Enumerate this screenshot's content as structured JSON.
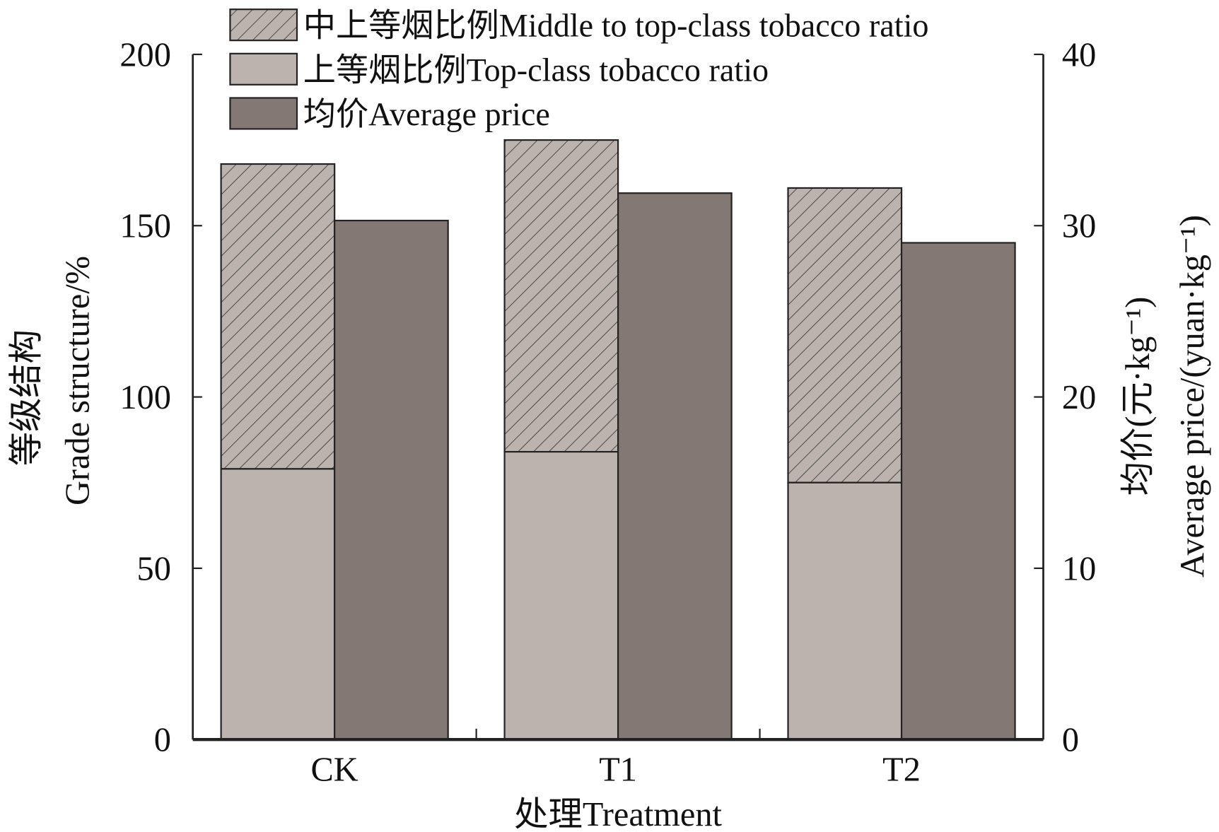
{
  "chart_data": {
    "type": "bar",
    "categories": [
      "CK",
      "T1",
      "T2"
    ],
    "series": [
      {
        "name": "中上等烟比例Middle to top-class tobacco ratio",
        "axis": "left",
        "stack": "grade",
        "values": [
          168,
          175,
          161
        ],
        "color": "#bdb3ae",
        "pattern": "hatch"
      },
      {
        "name": "上等烟比例Top-class tobacco ratio",
        "axis": "left",
        "stack": "grade",
        "values": [
          79,
          84,
          75
        ],
        "color": "#bdb3ae"
      },
      {
        "name": "均价Average price",
        "axis": "right",
        "values": [
          30.3,
          31.9,
          29.0
        ],
        "color": "#847875"
      }
    ],
    "xlabel": "处理Treatment",
    "ylabel": "等级结构 Grade structure/%",
    "ylabel_lines": [
      "等级结构",
      "Grade structure/%"
    ],
    "y2label_lines": [
      "均价(元·kg⁻¹)",
      "Average price/(yuan·kg⁻¹)"
    ],
    "ylim": [
      0,
      200
    ],
    "yticks": [
      0,
      50,
      100,
      150,
      200
    ],
    "y2lim": [
      0,
      40
    ],
    "y2ticks": [
      0,
      10,
      20,
      30,
      40
    ],
    "legend_position": "top-left",
    "grid": false
  }
}
